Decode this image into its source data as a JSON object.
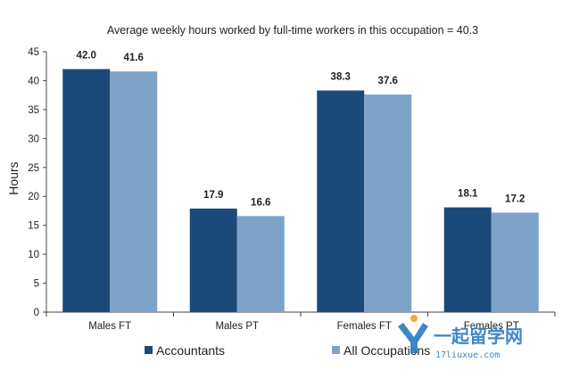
{
  "chart_data": {
    "type": "bar",
    "title": "Average weekly hours worked by full-time workers in this occupation = 40.3",
    "ylabel": "Hours",
    "xlabel": "",
    "ylim": [
      0,
      45
    ],
    "yticks": [
      0,
      5,
      10,
      15,
      20,
      25,
      30,
      35,
      40,
      45
    ],
    "categories": [
      "Males FT",
      "Males PT",
      "Females FT",
      "Females PT"
    ],
    "series": [
      {
        "name": "Accountants",
        "values": [
          42.0,
          17.9,
          38.3,
          18.1
        ],
        "color": "#1b4a7a"
      },
      {
        "name": "All Occupations",
        "values": [
          41.6,
          16.6,
          37.6,
          17.2
        ],
        "color": "#7fa2c8"
      }
    ],
    "data_labels": [
      [
        "42.0",
        "17.9",
        "38.3",
        "18.1"
      ],
      [
        "41.6",
        "16.6",
        "37.6",
        "17.2"
      ]
    ],
    "grid": false,
    "legend_position": "bottom"
  },
  "watermark": {
    "text_cn": "一起留学网",
    "text_url": "17liuxue.com"
  }
}
